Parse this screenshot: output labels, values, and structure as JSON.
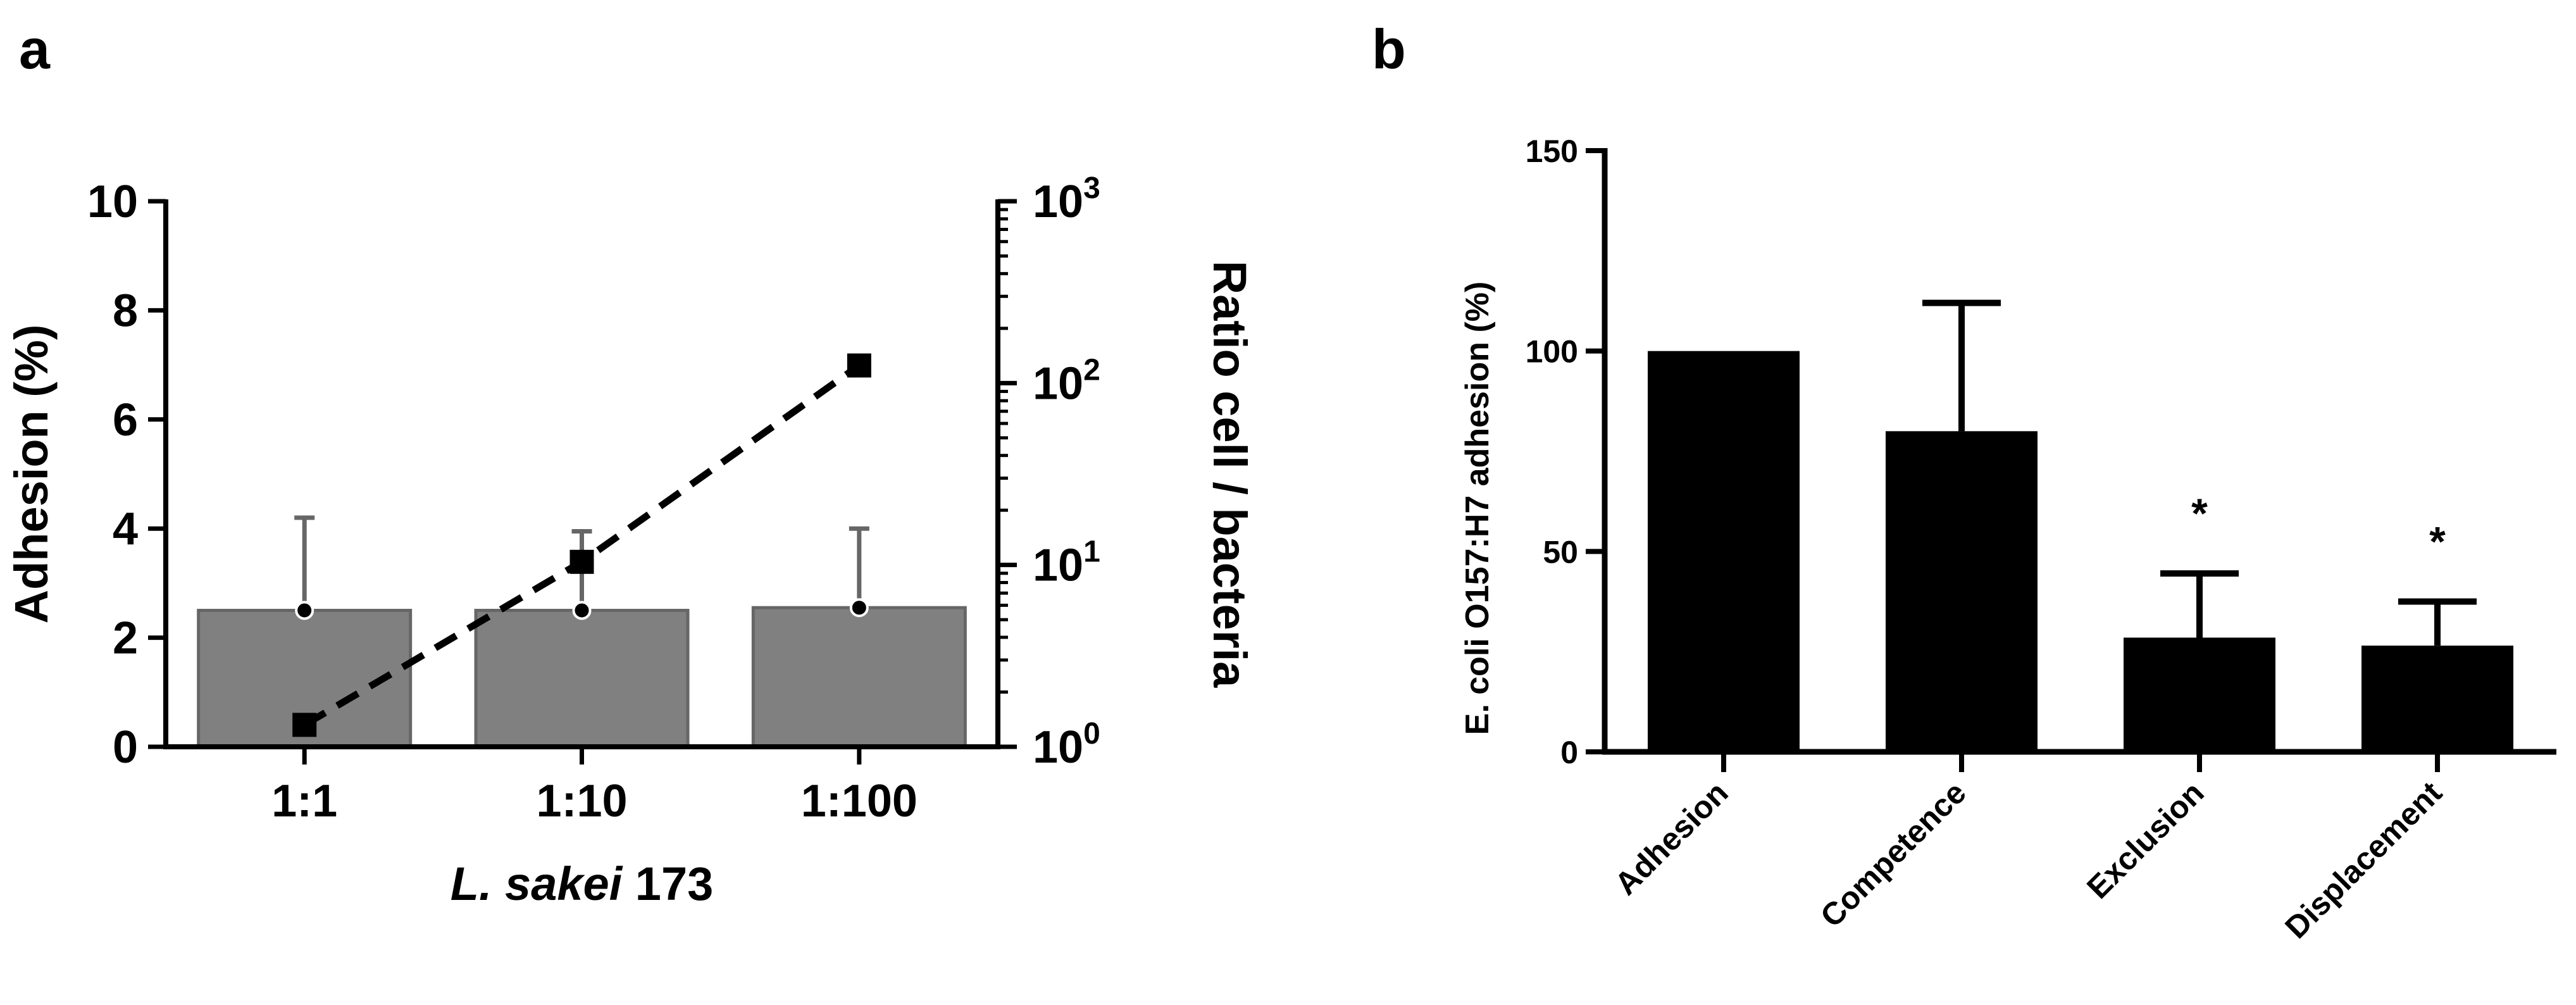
{
  "colors": {
    "bar_a": "#808080",
    "bar_a_edge": "#666666",
    "errorbar_a": "#666666",
    "bar_b": "#000000",
    "axis": "#000000"
  },
  "chart_data": [
    {
      "panel": "a",
      "type": "bar",
      "categories": [
        "1:1",
        "1:10",
        "1:100"
      ],
      "values": [
        2.5,
        2.5,
        2.55
      ],
      "errors": [
        1.7,
        1.45,
        1.45
      ],
      "xlabel": "L. sakei 173",
      "xlabel_italic": "L. sakei",
      "xlabel_rest": " 173",
      "ylabel": "Adhesion  (%)",
      "ylim": [
        0,
        10
      ],
      "yticks": [
        0,
        2,
        4,
        6,
        8,
        10
      ],
      "secondary_axis": {
        "type": "line",
        "scale": "log",
        "ylabel": "Ratio cell / bacteria",
        "ylim": [
          1,
          1000
        ],
        "ticks": [
          1,
          10,
          100,
          1000
        ],
        "tick_labels": [
          {
            "base": "10",
            "exp": "0"
          },
          {
            "base": "10",
            "exp": "1"
          },
          {
            "base": "10",
            "exp": "2"
          },
          {
            "base": "10",
            "exp": "3"
          }
        ],
        "values": [
          1.32,
          10.4,
          125
        ],
        "style": "dashed"
      }
    },
    {
      "panel": "b",
      "type": "bar",
      "categories": [
        "Adhesion",
        "Competence",
        "Exclusion",
        "Displacement"
      ],
      "values": [
        100,
        80,
        28.5,
        26.5
      ],
      "errors": [
        0,
        32,
        16,
        11
      ],
      "significance": [
        "",
        "",
        "*",
        "*"
      ],
      "ylabel": "E. coli O157:H7 adhesion (%)",
      "ylim": [
        0,
        150
      ],
      "yticks": [
        0,
        50,
        100,
        150
      ]
    }
  ]
}
